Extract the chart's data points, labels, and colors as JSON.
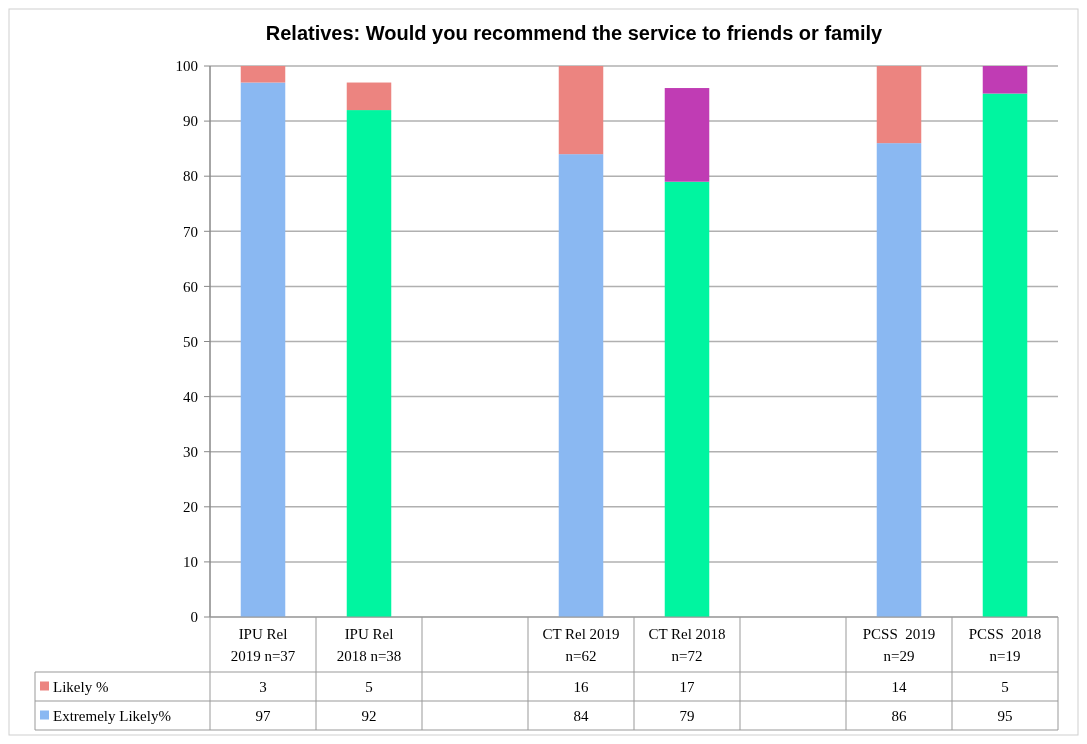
{
  "chart_data": {
    "type": "bar",
    "title": "Relatives: Would you recommend the service to friends or family",
    "stacked": true,
    "categories": [
      "IPU Rel 2019 n=37",
      "IPU Rel 2018 n=38",
      null,
      "CT Rel 2019 n=62",
      "CT Rel 2018 n=72",
      null,
      "PCSS  2019 n=29",
      "PCSS  2018 n=19"
    ],
    "series": [
      {
        "name": "Extremely Likely%",
        "color": "#8ab8f2",
        "colors": [
          "#8ab8f2",
          "#00f5a0",
          null,
          "#8ab8f2",
          "#00f5a0",
          null,
          "#8ab8f2",
          "#00f5a0"
        ],
        "values": [
          97,
          92,
          null,
          84,
          79,
          null,
          86,
          95
        ]
      },
      {
        "name": "Likely %",
        "color": "#ec8480",
        "colors": [
          "#ec8480",
          "#ec8480",
          null,
          "#ec8480",
          "#c03cb4",
          null,
          "#ec8480",
          "#c03cb4"
        ],
        "values": [
          3,
          5,
          null,
          16,
          17,
          null,
          14,
          5
        ]
      }
    ],
    "ylim": [
      0,
      100
    ],
    "yticks": [
      0,
      10,
      20,
      30,
      40,
      50,
      60,
      70,
      80,
      90,
      100
    ],
    "grid": "y",
    "legend": "bottom left",
    "data_labels": true
  }
}
